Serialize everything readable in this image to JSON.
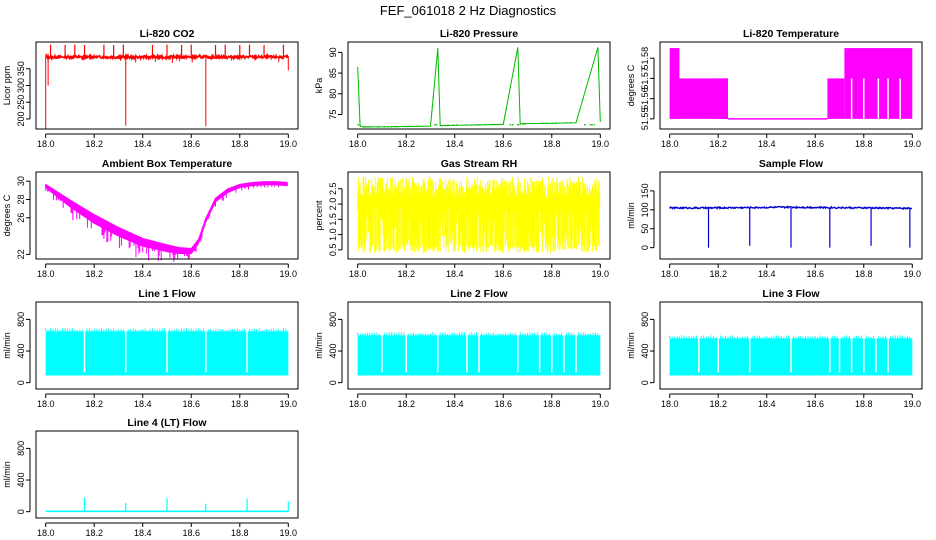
{
  "figure": {
    "title": "FEF_061018  2 Hz Diagnostics"
  },
  "chart_data": [
    {
      "type": "line",
      "id": "co2",
      "title": "Li-820 CO2",
      "xlabel": "",
      "ylabel": "Licor ppm",
      "color": "#ff0000",
      "xlim": [
        17.96,
        19.04
      ],
      "ylim": [
        170,
        430
      ],
      "xticks": [
        "18.0",
        "18.2",
        "18.4",
        "18.6",
        "18.8",
        "19.0"
      ],
      "yticks": [
        "200",
        "250",
        "300",
        "350"
      ],
      "ytick_values": [
        200,
        250,
        300,
        350
      ],
      "x": [
        18.0,
        18.04,
        18.08,
        18.12,
        18.16,
        18.2,
        18.24,
        18.28,
        18.32,
        18.33,
        18.36,
        18.4,
        18.44,
        18.48,
        18.52,
        18.56,
        18.6,
        18.64,
        18.66,
        18.7,
        18.74,
        18.78,
        18.82,
        18.86,
        18.9,
        18.94,
        18.98,
        19.0
      ],
      "y": [
        380,
        385,
        384,
        386,
        385,
        384,
        386,
        385,
        384,
        250,
        385,
        386,
        384,
        385,
        386,
        385,
        384,
        386,
        180,
        385,
        386,
        384,
        385,
        386,
        385,
        384,
        385,
        360
      ],
      "series": [
        {
          "name": "spikes_up",
          "x": [
            18.02,
            18.08,
            18.12,
            18.16,
            18.24,
            18.28,
            18.32,
            18.44,
            18.5,
            18.56,
            18.6,
            18.7,
            18.74,
            18.8,
            18.84,
            18.9,
            18.98
          ],
          "y": [
            422,
            421,
            422,
            421,
            422,
            421,
            422,
            421,
            422,
            421,
            422,
            421,
            422,
            421,
            422,
            421,
            422
          ]
        },
        {
          "name": "spikes_down",
          "x": [
            18.0,
            18.01,
            18.33,
            18.66,
            19.0
          ],
          "y": [
            170,
            300,
            180,
            178,
            345
          ]
        }
      ]
    },
    {
      "type": "line",
      "id": "pressure",
      "title": "Li-820 Pressure",
      "xlabel": "",
      "ylabel": "kPa",
      "color": "#00bb00",
      "xlim": [
        17.96,
        19.04
      ],
      "ylim": [
        71.5,
        92.5
      ],
      "xticks": [
        "18.0",
        "18.2",
        "18.4",
        "18.6",
        "18.8",
        "19.0"
      ],
      "yticks": [
        "75",
        "80",
        "85",
        "90"
      ],
      "ytick_values": [
        75,
        80,
        85,
        90
      ],
      "x": [
        18.0,
        18.01,
        18.02,
        18.1,
        18.2,
        18.3,
        18.33,
        18.34,
        18.4,
        18.5,
        18.6,
        18.66,
        18.67,
        18.7,
        18.8,
        18.9,
        18.99,
        19.0
      ],
      "y": [
        86.5,
        72.2,
        72.0,
        72.0,
        72.1,
        72.2,
        91.0,
        72.3,
        72.4,
        72.5,
        72.6,
        91.2,
        72.7,
        72.8,
        72.9,
        73.0,
        91.2,
        73.2
      ]
    },
    {
      "type": "line",
      "id": "temperature",
      "title": "Li-820 Temperature",
      "xlabel": "",
      "ylabel": "degrees C",
      "color": "#ff00ff",
      "xlim": [
        17.96,
        19.04
      ],
      "ylim": [
        51.545,
        51.588
      ],
      "xticks": [
        "18.0",
        "18.2",
        "18.4",
        "18.6",
        "18.8",
        "19.0"
      ],
      "yticks": [
        "51.55",
        "51.56",
        "51.57",
        "51.58"
      ],
      "ytick_values": [
        51.55,
        51.56,
        51.57,
        51.58
      ],
      "levels": [
        51.55,
        51.57,
        51.585
      ],
      "x": [
        18.0,
        18.02,
        18.04,
        18.1,
        18.2,
        18.24,
        18.3,
        18.4,
        18.5,
        18.6,
        18.65,
        18.7,
        18.72,
        18.8,
        18.9,
        19.0
      ],
      "y": [
        51.585,
        51.57,
        51.585,
        51.57,
        51.57,
        51.55,
        51.55,
        51.55,
        51.55,
        51.55,
        51.57,
        51.57,
        51.585,
        51.585,
        51.585,
        51.585
      ]
    },
    {
      "type": "line",
      "id": "ambient",
      "title": "Ambient Box Temperature",
      "xlabel": "",
      "ylabel": "degrees C",
      "color": "#ff00ff",
      "xlim": [
        17.96,
        19.04
      ],
      "ylim": [
        21.5,
        31
      ],
      "xticks": [
        "18.0",
        "18.2",
        "18.4",
        "18.6",
        "18.8",
        "19.0"
      ],
      "yticks": [
        "22",
        "26",
        "28",
        "30"
      ],
      "ytick_values": [
        22,
        26,
        28,
        30
      ],
      "x": [
        18.0,
        18.1,
        18.2,
        18.3,
        18.4,
        18.5,
        18.55,
        18.6,
        18.63,
        18.66,
        18.7,
        18.75,
        18.8,
        18.85,
        18.9,
        18.95,
        19.0
      ],
      "y": [
        29.5,
        27.8,
        26.2,
        24.8,
        23.6,
        22.9,
        22.6,
        22.5,
        23.5,
        25.8,
        28.0,
        29.0,
        29.5,
        29.7,
        29.8,
        29.8,
        29.7
      ],
      "spread": [
        0.4,
        1.2,
        1.6,
        1.6,
        1.4,
        1.2,
        1.0,
        0.8,
        0.6,
        0.5,
        0.5,
        0.5,
        0.4,
        0.4,
        0.4,
        0.4,
        0.4
      ]
    },
    {
      "type": "line",
      "id": "rh",
      "title": "Gas Stream RH",
      "xlabel": "",
      "ylabel": "percent",
      "color": "#ffff00",
      "xlim": [
        17.96,
        19.04
      ],
      "ylim": [
        0.2,
        3.05
      ],
      "xticks": [
        "18.0",
        "18.2",
        "18.4",
        "18.6",
        "18.8",
        "19.0"
      ],
      "yticks": [
        "0.5",
        "1.0",
        "1.5",
        "2.0",
        "2.5"
      ],
      "ytick_values": [
        0.5,
        1.0,
        1.5,
        2.0,
        2.5
      ],
      "x": [
        18.0,
        18.5,
        19.0
      ],
      "y_min": [
        0.4,
        0.4,
        0.4
      ],
      "y_max": [
        2.85,
        2.95,
        2.85
      ]
    },
    {
      "type": "line",
      "id": "sample_flow",
      "title": "Sample Flow",
      "xlabel": "",
      "ylabel": "ml/min",
      "color": "#0000cc",
      "xlim": [
        17.96,
        19.04
      ],
      "ylim": [
        -30,
        200
      ],
      "xticks": [
        "18.0",
        "18.2",
        "18.4",
        "18.6",
        "18.8",
        "19.0"
      ],
      "yticks": [
        "0",
        "50",
        "100",
        "150"
      ],
      "ytick_values": [
        0,
        50,
        100,
        150
      ],
      "x": [
        18.0,
        18.16,
        18.33,
        18.5,
        18.66,
        18.83,
        19.0
      ],
      "y": [
        105,
        105,
        106,
        107,
        106,
        105,
        104
      ],
      "series": [
        {
          "name": "drops",
          "x": [
            18.16,
            18.33,
            18.5,
            18.66,
            18.83,
            18.99
          ],
          "y": [
            0,
            5,
            0,
            0,
            5,
            0
          ]
        }
      ]
    },
    {
      "type": "line",
      "id": "line1",
      "title": "Line 1 Flow",
      "xlabel": "",
      "ylabel": "ml/min",
      "color": "#00ffff",
      "xlim": [
        17.96,
        19.04
      ],
      "ylim": [
        -80,
        1020
      ],
      "xticks": [
        "18.0",
        "18.2",
        "18.4",
        "18.6",
        "18.8",
        "19.0"
      ],
      "yticks": [
        "0",
        "400",
        "800"
      ],
      "ytick_values": [
        0,
        400,
        800
      ],
      "y_min": 100,
      "y_max": 650,
      "gaps": [
        18.16,
        18.33,
        18.5,
        18.66,
        18.83
      ]
    },
    {
      "type": "line",
      "id": "line2",
      "title": "Line 2 Flow",
      "xlabel": "",
      "ylabel": "ml/min",
      "color": "#00ffff",
      "xlim": [
        17.96,
        19.04
      ],
      "ylim": [
        -80,
        1020
      ],
      "xticks": [
        "18.0",
        "18.2",
        "18.4",
        "18.6",
        "18.8",
        "19.0"
      ],
      "yticks": [
        "0",
        "400",
        "800"
      ],
      "ytick_values": [
        0,
        400,
        800
      ],
      "y_min": 100,
      "y_max": 600,
      "gaps": [
        18.1,
        18.2,
        18.33,
        18.45,
        18.5,
        18.66,
        18.75,
        18.8,
        18.85,
        18.9
      ]
    },
    {
      "type": "line",
      "id": "line3",
      "title": "Line 3 Flow",
      "xlabel": "",
      "ylabel": "ml/min",
      "color": "#00ffff",
      "xlim": [
        17.96,
        19.04
      ],
      "ylim": [
        -80,
        1020
      ],
      "xticks": [
        "18.0",
        "18.2",
        "18.4",
        "18.6",
        "18.8",
        "19.0"
      ],
      "yticks": [
        "0",
        "400",
        "800"
      ],
      "ytick_values": [
        0,
        400,
        800
      ],
      "y_min": 100,
      "y_max": 560,
      "gaps": [
        18.12,
        18.2,
        18.33,
        18.5,
        18.66,
        18.7,
        18.75,
        18.8,
        18.85,
        18.9
      ]
    },
    {
      "type": "line",
      "id": "line4",
      "title": "Line 4 (LT) Flow",
      "xlabel": "",
      "ylabel": "ml/min",
      "color": "#00ffff",
      "xlim": [
        17.96,
        19.04
      ],
      "ylim": [
        -80,
        1020
      ],
      "xticks": [
        "18.0",
        "18.2",
        "18.4",
        "18.6",
        "18.8",
        "19.0"
      ],
      "yticks": [
        "0",
        "400",
        "800"
      ],
      "ytick_values": [
        0,
        400,
        800
      ],
      "x": [
        18.0,
        19.0
      ],
      "y": [
        5,
        5
      ],
      "series": [
        {
          "name": "spikes",
          "x": [
            18.16,
            18.33,
            18.5,
            18.66,
            18.83,
            19.0
          ],
          "y": [
            180,
            110,
            170,
            100,
            165,
            130
          ]
        }
      ]
    }
  ]
}
